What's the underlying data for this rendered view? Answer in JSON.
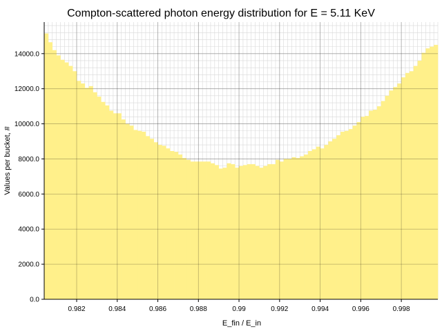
{
  "chart_data": {
    "type": "bar",
    "title": "Compton-scattered photon energy distribution for E = 5.11 KeV",
    "xlabel": "E_fin / E_in",
    "ylabel": "Values per bucket, #",
    "xlim": [
      0.9804,
      0.9998
    ],
    "ylim": [
      0,
      15800
    ],
    "x_ticks": [
      "0.982",
      "0.984",
      "0.986",
      "0.988",
      "0.99",
      "0.992",
      "0.994",
      "0.996",
      "0.998"
    ],
    "x_tick_values": [
      0.982,
      0.984,
      0.986,
      0.988,
      0.99,
      0.992,
      0.994,
      0.996,
      0.998
    ],
    "y_ticks": [
      "0.0",
      "2000.0",
      "4000.0",
      "6000.0",
      "8000.0",
      "10000.0",
      "12000.0",
      "14000.0"
    ],
    "y_tick_values": [
      0,
      2000,
      4000,
      6000,
      8000,
      10000,
      12000,
      14000
    ],
    "grid": true,
    "bar_color": "#fff08a",
    "bin_width": 0.0002,
    "x": [
      0.9804,
      0.9806,
      0.9808,
      0.981,
      0.9812,
      0.9814,
      0.9816,
      0.9818,
      0.982,
      0.9822,
      0.9824,
      0.9826,
      0.9828,
      0.983,
      0.9832,
      0.9834,
      0.9836,
      0.9838,
      0.984,
      0.9842,
      0.9844,
      0.9846,
      0.9848,
      0.985,
      0.9852,
      0.9854,
      0.9856,
      0.9858,
      0.986,
      0.9862,
      0.9864,
      0.9866,
      0.9868,
      0.987,
      0.9872,
      0.9874,
      0.9876,
      0.9878,
      0.988,
      0.9882,
      0.9884,
      0.9886,
      0.9888,
      0.989,
      0.9892,
      0.9894,
      0.9896,
      0.9898,
      0.99,
      0.9902,
      0.9904,
      0.9906,
      0.9908,
      0.991,
      0.9912,
      0.9914,
      0.9916,
      0.9918,
      0.992,
      0.9922,
      0.9924,
      0.9926,
      0.9928,
      0.993,
      0.9932,
      0.9934,
      0.9936,
      0.9938,
      0.994,
      0.9942,
      0.9944,
      0.9946,
      0.9948,
      0.995,
      0.9952,
      0.9954,
      0.9956,
      0.9958,
      0.996,
      0.9962,
      0.9964,
      0.9966,
      0.9968,
      0.997,
      0.9972,
      0.9974,
      0.9976,
      0.9978,
      0.998,
      0.9982,
      0.9984,
      0.9986,
      0.9988,
      0.999,
      0.9992,
      0.9994,
      0.9996
    ],
    "values": [
      15150,
      14650,
      14200,
      13900,
      13650,
      13500,
      13300,
      13000,
      12450,
      12300,
      12050,
      12150,
      11800,
      11550,
      11250,
      11050,
      10750,
      10600,
      10600,
      10250,
      10000,
      9900,
      9650,
      9600,
      9550,
      9300,
      9150,
      8950,
      8800,
      8750,
      8600,
      8450,
      8400,
      8250,
      8050,
      7950,
      7850,
      7850,
      7850,
      7850,
      7850,
      7750,
      7650,
      7450,
      7500,
      7750,
      7700,
      7500,
      7600,
      7650,
      7700,
      7700,
      7600,
      7500,
      7600,
      7700,
      7700,
      7950,
      7850,
      8000,
      8000,
      8100,
      8050,
      8150,
      8250,
      8450,
      8550,
      8700,
      8600,
      8800,
      9000,
      9150,
      9350,
      9550,
      9600,
      9700,
      9900,
      10100,
      10400,
      10450,
      10750,
      10800,
      11000,
      11300,
      11600,
      11900,
      12100,
      12300,
      12650,
      12900,
      13000,
      13300,
      13600,
      14050,
      14300,
      14400,
      14500
    ]
  }
}
